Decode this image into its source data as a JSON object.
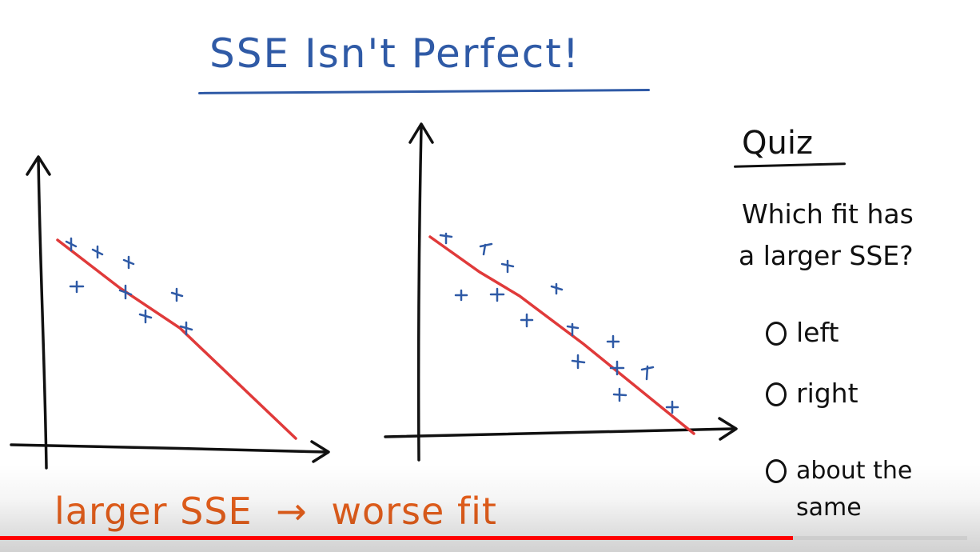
{
  "title": "SSE Isn't Perfect!",
  "quiz": {
    "heading": "Quiz",
    "question_line1": "Which fit has",
    "question_line2": "a larger SSE?",
    "options": [
      "left",
      "right",
      "about the same"
    ]
  },
  "bottom": {
    "left_text": "larger SSE",
    "arrow": "→",
    "right_text": "worse fit"
  },
  "video": {
    "progress_fraction": 0.82
  },
  "colors": {
    "ink_blue": "#2f5aa6",
    "fit_red": "#e03a3a",
    "bottom_orange": "#e8601c",
    "axis_black": "#111111",
    "progress_red": "#ff0000"
  },
  "icons": {
    "axis": "arrow-axis",
    "points": "cross-marker",
    "radio": "circle-radio"
  }
}
